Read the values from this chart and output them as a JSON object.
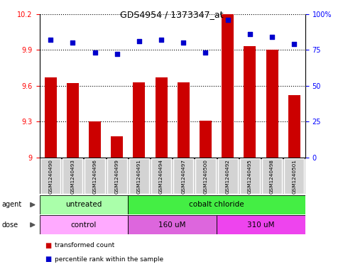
{
  "title": "GDS4954 / 1373347_at",
  "samples": [
    "GSM1240490",
    "GSM1240493",
    "GSM1240496",
    "GSM1240499",
    "GSM1240491",
    "GSM1240494",
    "GSM1240497",
    "GSM1240500",
    "GSM1240492",
    "GSM1240495",
    "GSM1240498",
    "GSM1240501"
  ],
  "bar_values": [
    9.67,
    9.62,
    9.3,
    9.18,
    9.63,
    9.67,
    9.63,
    9.31,
    10.2,
    9.93,
    9.9,
    9.52
  ],
  "dot_values": [
    82,
    80,
    73,
    72,
    81,
    82,
    80,
    73,
    96,
    86,
    84,
    79
  ],
  "y_min": 9.0,
  "y_max": 10.2,
  "y_ticks": [
    9.0,
    9.3,
    9.6,
    9.9,
    10.2
  ],
  "y_tick_labels": [
    "9",
    "9.3",
    "9.6",
    "9.9",
    "10.2"
  ],
  "y2_ticks": [
    0,
    25,
    50,
    75,
    100
  ],
  "y2_tick_labels": [
    "0",
    "25",
    "50",
    "75",
    "100%"
  ],
  "bar_color": "#cc0000",
  "dot_color": "#0000cc",
  "agent_groups": [
    {
      "label": "untreated",
      "start": 0,
      "end": 4,
      "color": "#aaffaa"
    },
    {
      "label": "cobalt chloride",
      "start": 4,
      "end": 12,
      "color": "#44ee44"
    }
  ],
  "dose_groups": [
    {
      "label": "control",
      "start": 0,
      "end": 4,
      "color": "#ffaaff"
    },
    {
      "label": "160 uM",
      "start": 4,
      "end": 8,
      "color": "#dd66dd"
    },
    {
      "label": "310 uM",
      "start": 8,
      "end": 12,
      "color": "#ee44ee"
    }
  ],
  "legend_items": [
    "transformed count",
    "percentile rank within the sample"
  ],
  "legend_colors": [
    "#cc0000",
    "#0000cc"
  ]
}
